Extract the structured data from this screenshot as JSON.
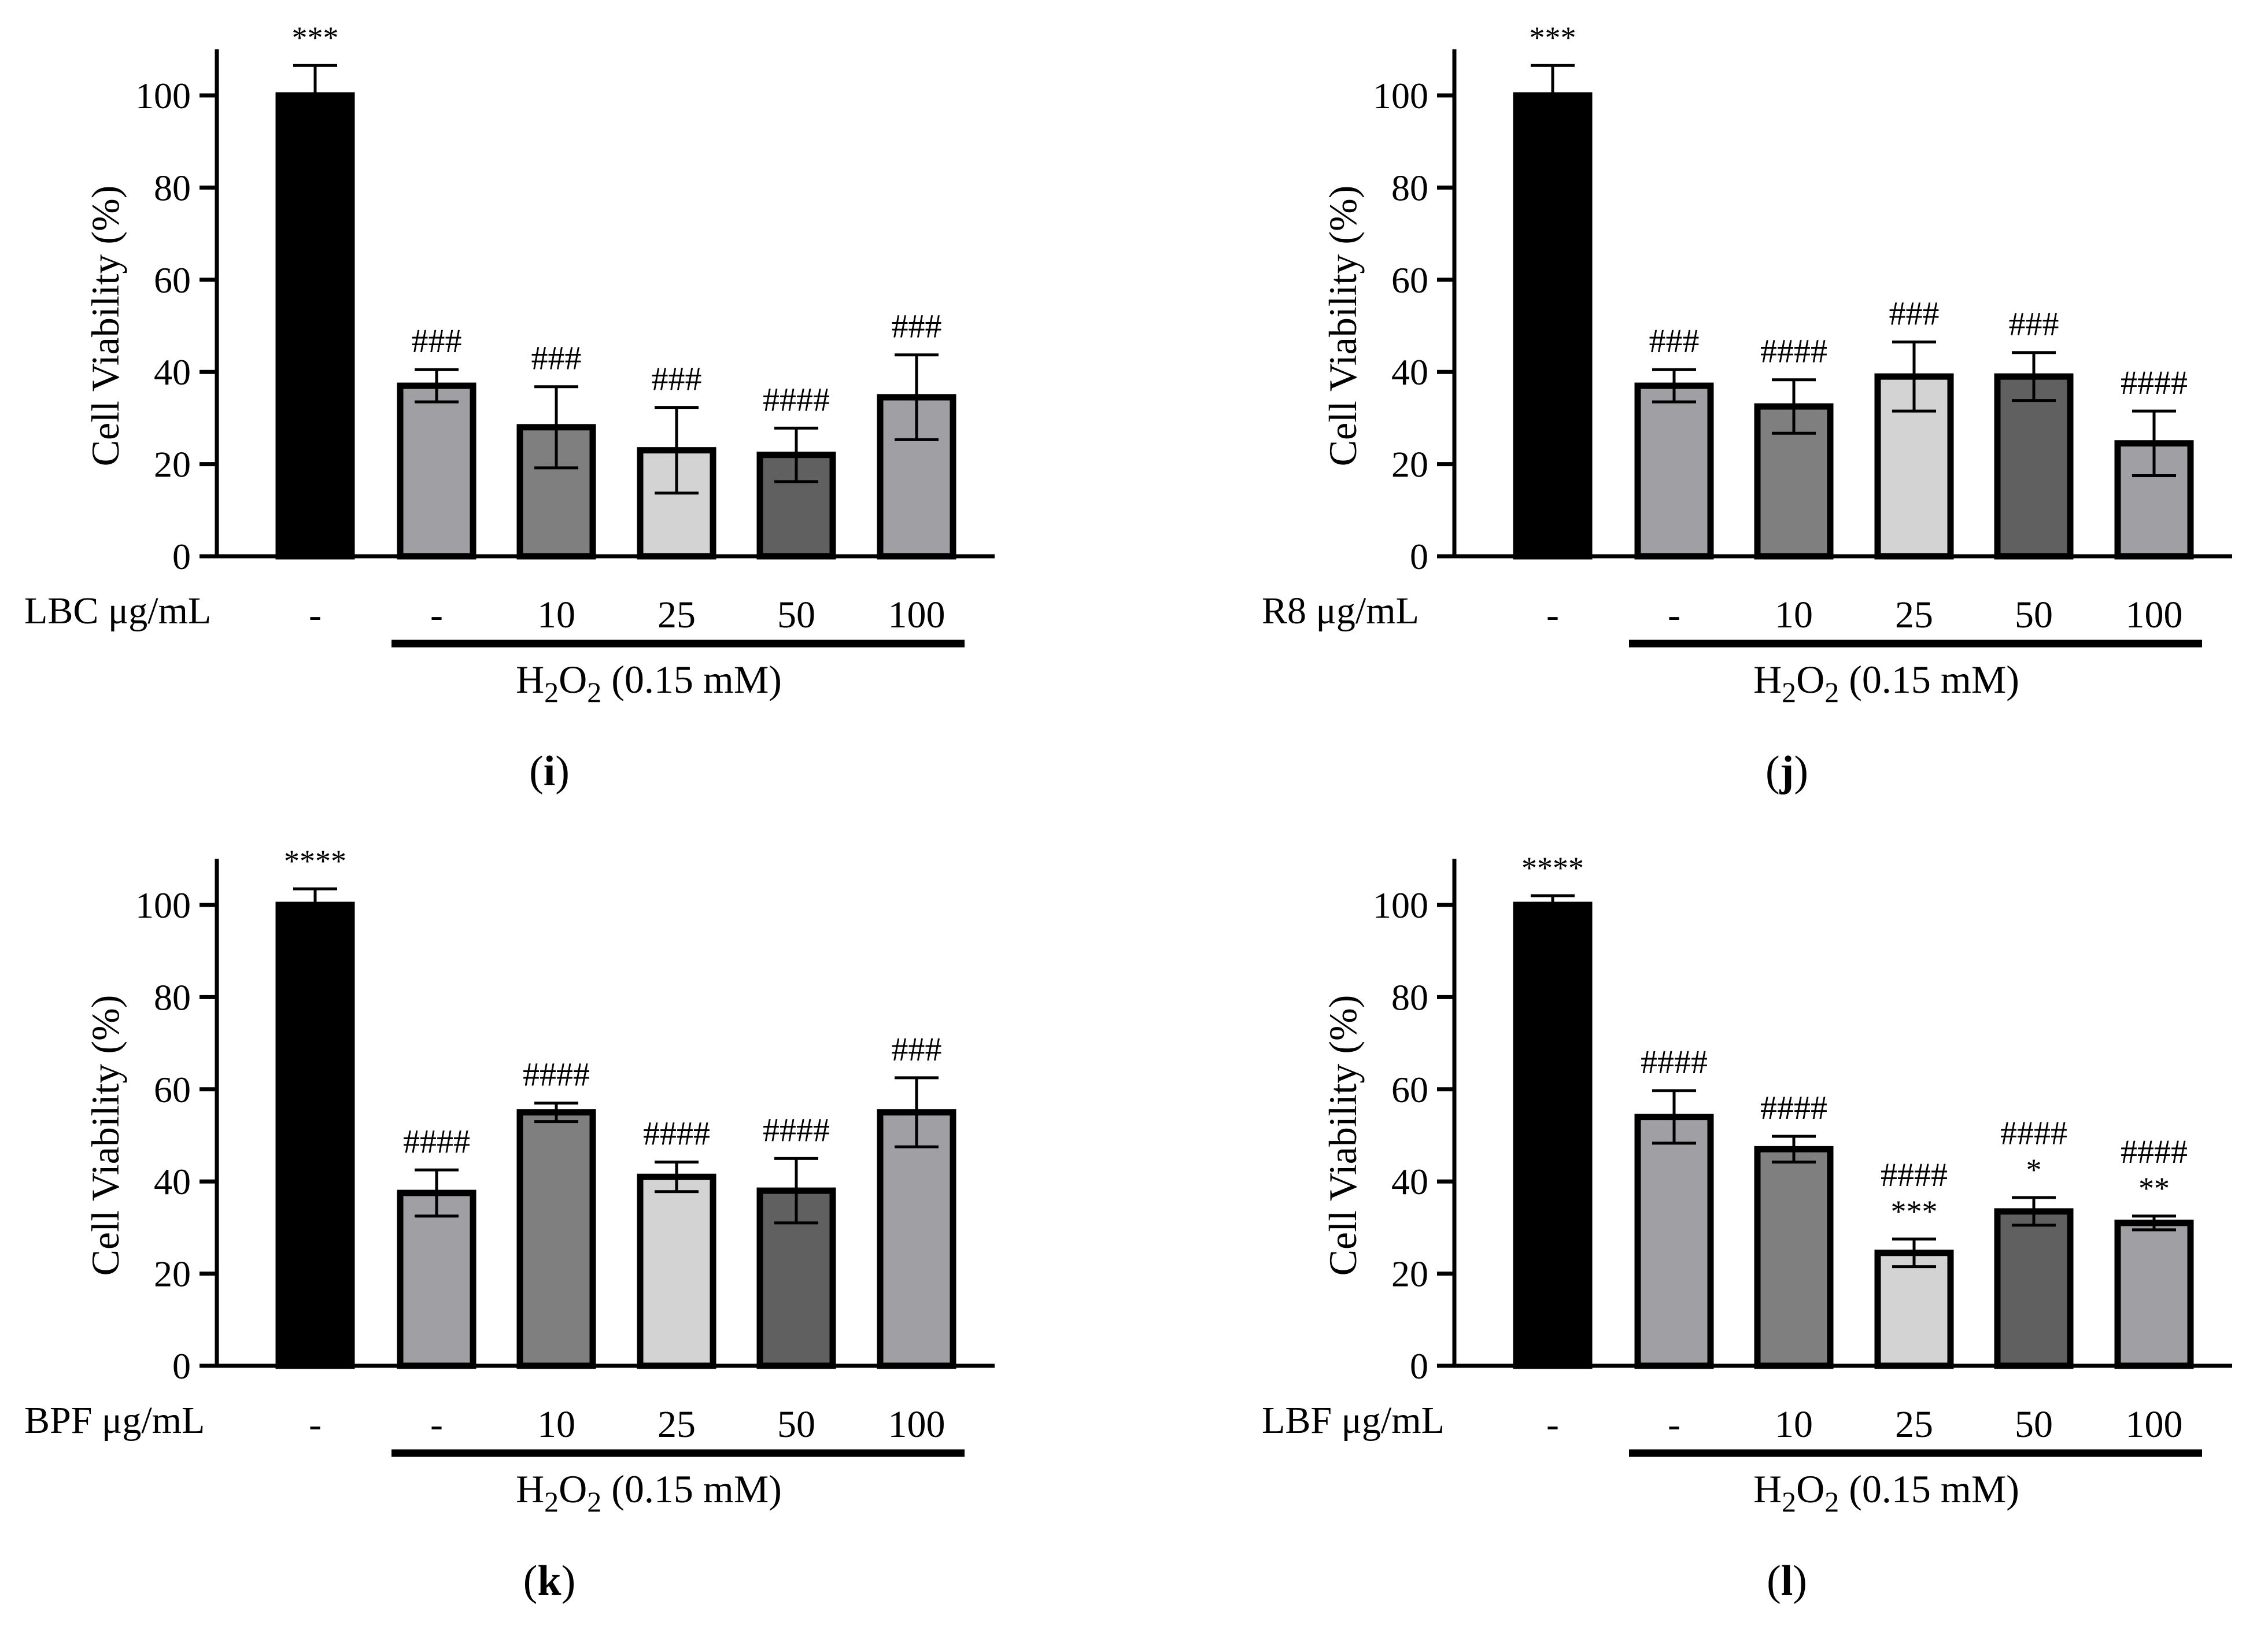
{
  "figure": {
    "colors": {
      "ink": "#000000",
      "control": "#000000",
      "light_gray": "#a0a0a4",
      "mid_gray": "#7f7f7f",
      "pale_gray": "#d3d3d3",
      "dark_gray": "#606060"
    }
  },
  "chart_data": [
    {
      "type": "bar",
      "panel_label": "i",
      "ylabel": "Cell Viability (%)",
      "ylim": [
        0,
        110
      ],
      "yticks": [
        0,
        20,
        40,
        60,
        80,
        100
      ],
      "treatment_label": "LBC μg/mL",
      "categories": [
        "-",
        "-",
        "10",
        "25",
        "50",
        "100"
      ],
      "values": [
        100,
        37,
        28,
        23,
        22,
        34.5
      ],
      "errors": [
        6.5,
        3.5,
        8.8,
        9.3,
        5.8,
        9.2
      ],
      "bar_colors": [
        "#000000",
        "#a0a0a4",
        "#7f7f7f",
        "#d3d3d3",
        "#606060",
        "#a0a0a4"
      ],
      "annotations": [
        [
          "***"
        ],
        [
          "###"
        ],
        [
          "###"
        ],
        [
          "###"
        ],
        [
          "####"
        ],
        [
          "###"
        ]
      ],
      "group_label": "H2O2 (0.15 mM)",
      "group_label_parts": {
        "h": "H",
        "sub1": "2",
        "o": "O",
        "sub2": "2",
        "rest": " (0.15 mM)"
      }
    },
    {
      "type": "bar",
      "panel_label": "j",
      "ylabel": "Cell Viability (%)",
      "ylim": [
        0,
        110
      ],
      "yticks": [
        0,
        20,
        40,
        60,
        80,
        100
      ],
      "treatment_label": "R8 μg/mL",
      "categories": [
        "-",
        "-",
        "10",
        "25",
        "50",
        "100"
      ],
      "values": [
        100,
        37,
        32.5,
        39,
        39,
        24.5
      ],
      "errors": [
        6.5,
        3.5,
        5.8,
        7.5,
        5.2,
        7
      ],
      "bar_colors": [
        "#000000",
        "#a0a0a4",
        "#7f7f7f",
        "#d3d3d3",
        "#606060",
        "#a0a0a4"
      ],
      "annotations": [
        [
          "***"
        ],
        [
          "###"
        ],
        [
          "####"
        ],
        [
          "###"
        ],
        [
          "###"
        ],
        [
          "####"
        ]
      ],
      "group_label": "H2O2 (0.15 mM)",
      "group_label_parts": {
        "h": "H",
        "sub1": "2",
        "o": "O",
        "sub2": "2",
        "rest": " (0.15 mM)"
      }
    },
    {
      "type": "bar",
      "panel_label": "k",
      "ylabel": "Cell Viability (%)",
      "ylim": [
        0,
        110
      ],
      "yticks": [
        0,
        20,
        40,
        60,
        80,
        100
      ],
      "treatment_label": "BPF μg/mL",
      "categories": [
        "-",
        "-",
        "10",
        "25",
        "50",
        "100"
      ],
      "values": [
        100,
        37.5,
        55,
        41,
        38,
        55
      ],
      "errors": [
        3.5,
        5,
        2,
        3.2,
        7,
        7.5
      ],
      "bar_colors": [
        "#000000",
        "#a0a0a4",
        "#7f7f7f",
        "#d3d3d3",
        "#606060",
        "#a0a0a4"
      ],
      "annotations": [
        [
          "****"
        ],
        [
          "####"
        ],
        [
          "####"
        ],
        [
          "####"
        ],
        [
          "####"
        ],
        [
          "###"
        ]
      ],
      "group_label": "H2O2 (0.15 mM)",
      "group_label_parts": {
        "h": "H",
        "sub1": "2",
        "o": "O",
        "sub2": "2",
        "rest": " (0.15 mM)"
      }
    },
    {
      "type": "bar",
      "panel_label": "l",
      "ylabel": "Cell Viability (%)",
      "ylim": [
        0,
        110
      ],
      "yticks": [
        0,
        20,
        40,
        60,
        80,
        100
      ],
      "treatment_label": "LBF μg/mL",
      "categories": [
        "-",
        "-",
        "10",
        "25",
        "50",
        "100"
      ],
      "values": [
        100,
        54,
        47,
        24.5,
        33.5,
        31
      ],
      "errors": [
        2,
        5.7,
        2.8,
        3,
        3,
        1.5
      ],
      "bar_colors": [
        "#000000",
        "#a0a0a4",
        "#7f7f7f",
        "#d3d3d3",
        "#606060",
        "#a0a0a4"
      ],
      "annotations": [
        [
          "****"
        ],
        [
          "####"
        ],
        [
          "####"
        ],
        [
          "####",
          "***"
        ],
        [
          "####",
          "*"
        ],
        [
          "####",
          "**"
        ]
      ],
      "group_label": "H2O2 (0.15 mM)",
      "group_label_parts": {
        "h": "H",
        "sub1": "2",
        "o": "O",
        "sub2": "2",
        "rest": " (0.15 mM)"
      }
    }
  ]
}
